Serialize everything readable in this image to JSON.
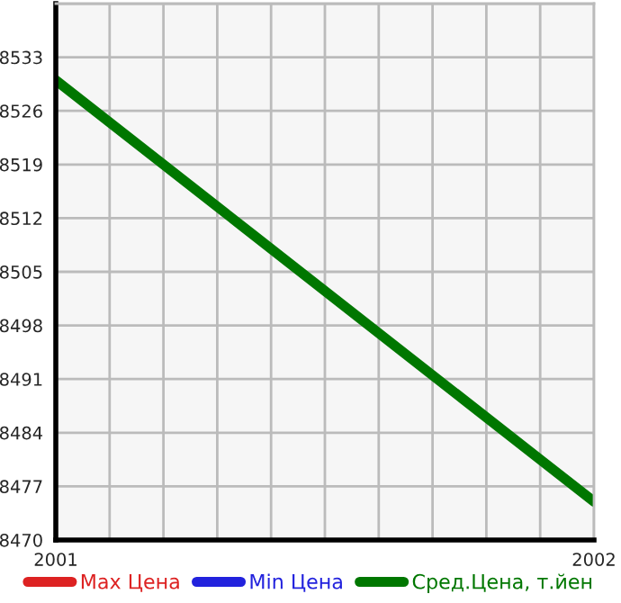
{
  "chart_data": {
    "type": "line",
    "x": [
      2001,
      2002
    ],
    "series": [
      {
        "name": "Max Цена",
        "color": "#dd2222",
        "values": [
          null,
          null
        ]
      },
      {
        "name": "Min Цена",
        "color": "#2222dd",
        "values": [
          null,
          null
        ]
      },
      {
        "name": "Сред.Цена, т.йен",
        "color": "#007700",
        "values": [
          8530,
          8475
        ]
      }
    ],
    "xlim": [
      2001,
      2002
    ],
    "xticks": [
      2001,
      {
        "value": 2001.1,
        "label": null
      },
      {
        "value": 2001.2,
        "label": null
      },
      {
        "value": 2001.3,
        "label": null
      },
      {
        "value": 2001.4,
        "label": null
      },
      {
        "value": 2001.5,
        "label": null
      },
      {
        "value": 2001.6,
        "label": null
      },
      {
        "value": 2001.7,
        "label": null
      },
      {
        "value": 2001.8,
        "label": null
      },
      {
        "value": 2001.9,
        "label": null
      },
      2002
    ],
    "ylim": [
      8470,
      8540
    ],
    "yticks": [
      8470,
      8477,
      8484,
      8491,
      8498,
      8505,
      8512,
      8519,
      8526,
      8533,
      {
        "value": 8540,
        "label": null
      }
    ],
    "grid": true,
    "legend": "bottom",
    "line_style": "solid",
    "marker": "none"
  }
}
